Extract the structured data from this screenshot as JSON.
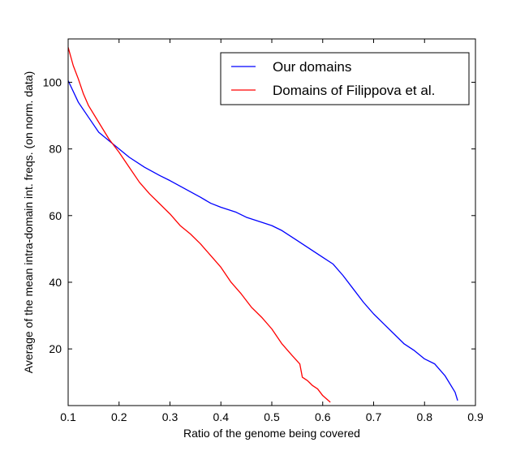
{
  "chart_data": {
    "type": "line",
    "xlabel": "Ratio of the genome being covered",
    "ylabel": "Average of the mean intra-domain int. freqs. (on norm. data)",
    "xlim": [
      0.1,
      0.9
    ],
    "ylim": [
      3,
      113
    ],
    "xticks": [
      0.1,
      0.2,
      0.3,
      0.4,
      0.5,
      0.6,
      0.7,
      0.8,
      0.9
    ],
    "xtick_labels": [
      "0.1",
      "0.2",
      "0.3",
      "0.4",
      "0.5",
      "0.6",
      "0.7",
      "0.8",
      "0.9"
    ],
    "yticks": [
      20,
      40,
      60,
      80,
      100
    ],
    "ytick_labels": [
      "20",
      "40",
      "60",
      "80",
      "100"
    ],
    "grid": false,
    "legend_position": "top-right",
    "series": [
      {
        "name": "Our domains",
        "color": "#0000ff",
        "points": [
          [
            0.1,
            100.5
          ],
          [
            0.12,
            94
          ],
          [
            0.14,
            89.5
          ],
          [
            0.16,
            85
          ],
          [
            0.18,
            82.5
          ],
          [
            0.2,
            80
          ],
          [
            0.22,
            77.5
          ],
          [
            0.25,
            74.5
          ],
          [
            0.28,
            72
          ],
          [
            0.3,
            70.5
          ],
          [
            0.33,
            68
          ],
          [
            0.36,
            65.5
          ],
          [
            0.38,
            63.7
          ],
          [
            0.4,
            62.5
          ],
          [
            0.43,
            61
          ],
          [
            0.45,
            59.5
          ],
          [
            0.48,
            58
          ],
          [
            0.5,
            57
          ],
          [
            0.52,
            55.5
          ],
          [
            0.55,
            52.5
          ],
          [
            0.57,
            50.5
          ],
          [
            0.6,
            47.5
          ],
          [
            0.62,
            45.5
          ],
          [
            0.64,
            42
          ],
          [
            0.66,
            38
          ],
          [
            0.68,
            34
          ],
          [
            0.7,
            30.5
          ],
          [
            0.72,
            27.5
          ],
          [
            0.74,
            24.5
          ],
          [
            0.76,
            21.5
          ],
          [
            0.78,
            19.5
          ],
          [
            0.8,
            17
          ],
          [
            0.82,
            15.5
          ],
          [
            0.84,
            12
          ],
          [
            0.86,
            7
          ],
          [
            0.865,
            4.5
          ]
        ]
      },
      {
        "name": "Domains of Filippova et al.",
        "color": "#ff0000",
        "points": [
          [
            0.1,
            110.5
          ],
          [
            0.11,
            105
          ],
          [
            0.12,
            101
          ],
          [
            0.13,
            96.5
          ],
          [
            0.14,
            93
          ],
          [
            0.16,
            88
          ],
          [
            0.18,
            83
          ],
          [
            0.2,
            79
          ],
          [
            0.22,
            74.5
          ],
          [
            0.24,
            70
          ],
          [
            0.26,
            66.5
          ],
          [
            0.28,
            63.5
          ],
          [
            0.3,
            60.5
          ],
          [
            0.32,
            57
          ],
          [
            0.34,
            54.5
          ],
          [
            0.36,
            51.5
          ],
          [
            0.38,
            48
          ],
          [
            0.4,
            44.5
          ],
          [
            0.42,
            40
          ],
          [
            0.44,
            36.5
          ],
          [
            0.46,
            32.5
          ],
          [
            0.48,
            29.5
          ],
          [
            0.5,
            26
          ],
          [
            0.52,
            21.5
          ],
          [
            0.54,
            18
          ],
          [
            0.555,
            15.5
          ],
          [
            0.56,
            11.5
          ],
          [
            0.57,
            10.5
          ],
          [
            0.58,
            9
          ],
          [
            0.59,
            8
          ],
          [
            0.6,
            6
          ],
          [
            0.615,
            4
          ]
        ]
      }
    ]
  }
}
